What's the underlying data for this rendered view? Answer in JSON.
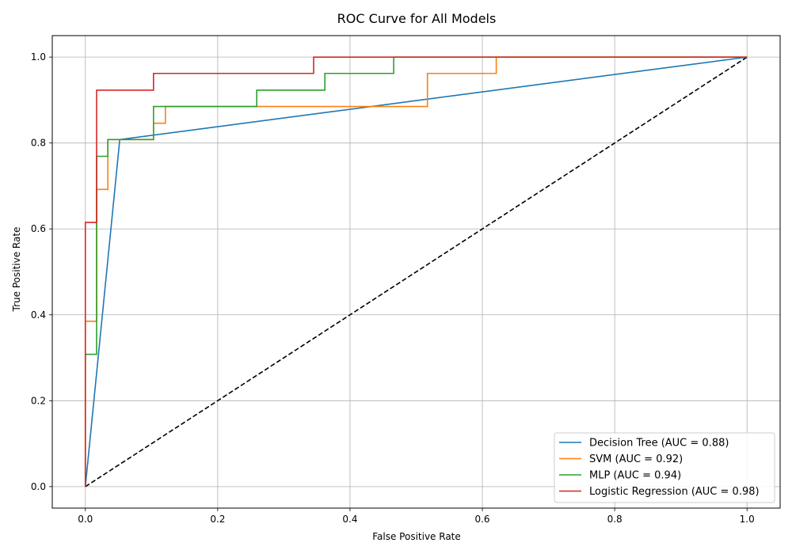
{
  "chart_data": {
    "type": "line",
    "title": "ROC Curve for All Models",
    "xlabel": "False Positive Rate",
    "ylabel": "True Positive Rate",
    "xlim": [
      -0.05,
      1.05
    ],
    "ylim": [
      -0.05,
      1.05
    ],
    "xticks": [
      0.0,
      0.2,
      0.4,
      0.6,
      0.8,
      1.0
    ],
    "yticks": [
      0.0,
      0.2,
      0.4,
      0.6,
      0.8,
      1.0
    ],
    "xtick_labels": [
      "0.0",
      "0.2",
      "0.4",
      "0.6",
      "0.8",
      "1.0"
    ],
    "ytick_labels": [
      "0.0",
      "0.2",
      "0.4",
      "0.6",
      "0.8",
      "1.0"
    ],
    "grid": true,
    "legend_position": "lower-right",
    "series": [
      {
        "name": "Decision Tree (AUC = 0.88)",
        "color": "#1f77b4",
        "x": [
          0.0,
          0.052,
          1.0
        ],
        "y": [
          0.0,
          0.808,
          1.0
        ]
      },
      {
        "name": "SVM (AUC = 0.92)",
        "color": "#ff7f0e",
        "x": [
          0.0,
          0.0,
          0.0,
          0.017,
          0.017,
          0.034,
          0.034,
          0.103,
          0.103,
          0.121,
          0.121,
          0.517,
          0.517,
          0.621,
          0.621,
          1.0
        ],
        "y": [
          0.0,
          0.0,
          0.385,
          0.385,
          0.692,
          0.692,
          0.808,
          0.808,
          0.846,
          0.846,
          0.885,
          0.885,
          0.962,
          0.962,
          1.0,
          1.0
        ]
      },
      {
        "name": "MLP (AUC = 0.94)",
        "color": "#2ca02c",
        "x": [
          0.0,
          0.0,
          0.0,
          0.017,
          0.017,
          0.034,
          0.034,
          0.103,
          0.103,
          0.259,
          0.259,
          0.362,
          0.362,
          0.466,
          0.466,
          1.0
        ],
        "y": [
          0.0,
          0.0,
          0.308,
          0.308,
          0.769,
          0.769,
          0.808,
          0.808,
          0.885,
          0.885,
          0.923,
          0.923,
          0.962,
          0.962,
          1.0,
          1.0
        ]
      },
      {
        "name": "Logistic Regression (AUC = 0.98)",
        "color": "#d62728",
        "x": [
          0.0,
          0.0,
          0.0,
          0.017,
          0.017,
          0.103,
          0.103,
          0.345,
          0.345,
          1.0
        ],
        "y": [
          0.0,
          0.0,
          0.615,
          0.615,
          0.923,
          0.923,
          0.962,
          0.962,
          1.0,
          1.0
        ]
      }
    ],
    "reference_line": {
      "color": "#000000",
      "style": "dashed",
      "x": [
        0.0,
        1.0
      ],
      "y": [
        0.0,
        1.0
      ]
    }
  }
}
